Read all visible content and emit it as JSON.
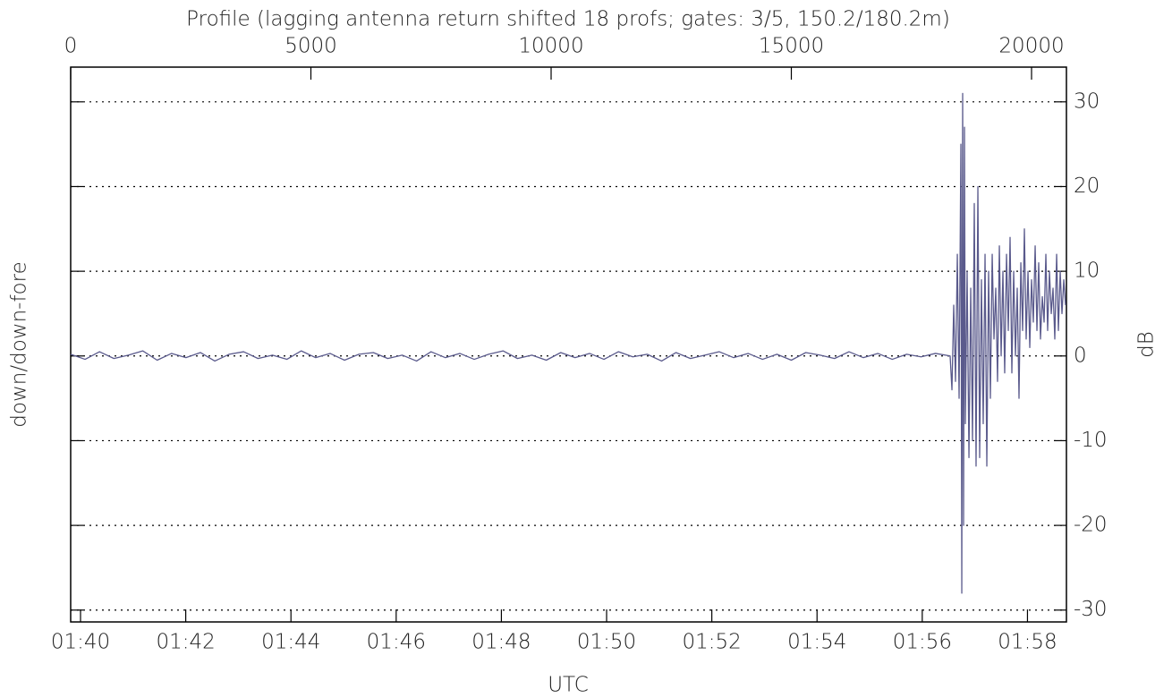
{
  "chart_data": {
    "type": "line",
    "title": "Profile (lagging antenna return shifted 18 profs; gates: 3/5, 150.2/180.2m)",
    "y_label": "down/down-fore",
    "y2_label": "dB",
    "x2_label": "UTC",
    "xlim": [
      0,
      20726
    ],
    "xticks": [
      0,
      5000,
      10000,
      15000,
      20000
    ],
    "x2ticks": [
      {
        "value": 205,
        "label": "01:40"
      },
      {
        "value": 2395,
        "label": "01:42"
      },
      {
        "value": 4585,
        "label": "01:44"
      },
      {
        "value": 6775,
        "label": "01:46"
      },
      {
        "value": 8965,
        "label": "01:48"
      },
      {
        "value": 11155,
        "label": "01:50"
      },
      {
        "value": 13345,
        "label": "01:52"
      },
      {
        "value": 15535,
        "label": "01:54"
      },
      {
        "value": 17725,
        "label": "01:56"
      },
      {
        "value": 19915,
        "label": "01:58"
      }
    ],
    "ylim": [
      -31.4,
      34.1
    ],
    "yticks": [
      -30,
      -20,
      -10,
      0,
      10,
      20,
      30
    ],
    "grid": true,
    "x": [
      0,
      300,
      600,
      900,
      1200,
      1500,
      1800,
      2100,
      2400,
      2700,
      3000,
      3300,
      3600,
      3900,
      4200,
      4500,
      4800,
      5100,
      5400,
      5700,
      6000,
      6300,
      6600,
      6900,
      7200,
      7500,
      7800,
      8100,
      8400,
      8700,
      9000,
      9300,
      9600,
      9900,
      10200,
      10500,
      10800,
      11100,
      11400,
      11700,
      12000,
      12300,
      12600,
      12900,
      13200,
      13500,
      13800,
      14100,
      14400,
      14700,
      15000,
      15300,
      15600,
      15900,
      16200,
      16500,
      16800,
      17100,
      17400,
      17700,
      18000,
      18305,
      18343,
      18380,
      18417,
      18455,
      18492,
      18529,
      18548,
      18566,
      18585,
      18604,
      18622,
      18659,
      18697,
      18734,
      18771,
      18808,
      18845,
      18883,
      18920,
      18957,
      18994,
      19032,
      19069,
      19106,
      19143,
      19181,
      19218,
      19255,
      19292,
      19330,
      19367,
      19404,
      19441,
      19479,
      19516,
      19553,
      19590,
      19628,
      19665,
      19702,
      19739,
      19777,
      19814,
      19851,
      19888,
      19926,
      19963,
      20000,
      20037,
      20075,
      20112,
      20149,
      20186,
      20224,
      20261,
      20298,
      20335,
      20373,
      20410,
      20447,
      20484,
      20522,
      20559,
      20596,
      20633,
      20671,
      20708
    ],
    "series": [
      {
        "color": "#5a5a8c",
        "values": [
          0.2,
          -0.4,
          0.5,
          -0.3,
          0.1,
          0.6,
          -0.5,
          0.3,
          -0.2,
          0.4,
          -0.6,
          0.2,
          0.5,
          -0.3,
          0.1,
          -0.4,
          0.6,
          -0.2,
          0.3,
          -0.5,
          0.2,
          0.4,
          -0.3,
          0.1,
          -0.6,
          0.5,
          -0.2,
          0.3,
          -0.4,
          0.2,
          0.6,
          -0.3,
          0.1,
          -0.5,
          0.4,
          -0.2,
          0.3,
          -0.4,
          0.5,
          -0.1,
          0.2,
          -0.6,
          0.4,
          -0.3,
          0.1,
          0.5,
          -0.2,
          0.3,
          -0.4,
          0.2,
          -0.5,
          0.4,
          0.1,
          -0.3,
          0.5,
          -0.2,
          0.3,
          -0.4,
          0.2,
          -0.1,
          0.3,
          0,
          -4,
          6,
          -3,
          12,
          -5,
          25,
          -28,
          31,
          -20,
          27,
          -8,
          10,
          -12,
          8,
          -10,
          18,
          -13,
          20,
          -12,
          9,
          -8,
          12,
          -13,
          10,
          -5,
          12,
          2,
          8,
          -3,
          13,
          0,
          10,
          -2,
          12,
          3,
          14,
          -2,
          10,
          0,
          8,
          -5,
          11,
          3,
          15,
          2,
          10,
          1,
          9,
          4,
          13,
          3,
          11,
          2,
          7,
          4,
          12,
          3,
          10,
          5,
          8,
          2,
          12,
          3,
          10,
          5,
          9,
          6
        ]
      }
    ]
  }
}
